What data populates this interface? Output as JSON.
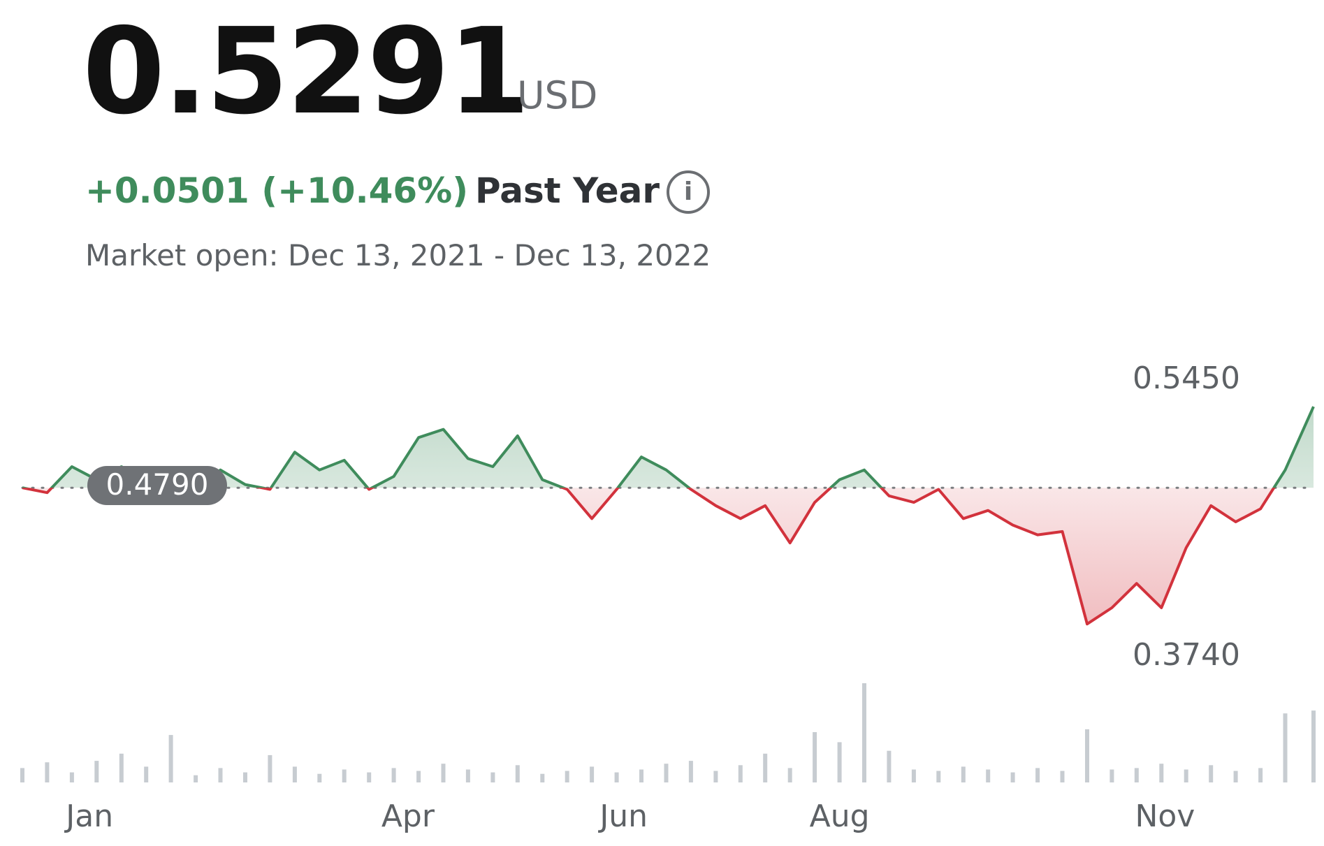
{
  "quote": {
    "price": "0.5291",
    "currency": "USD",
    "change": "+0.0501 (+10.46%)",
    "period": "Past Year",
    "session": "Market open: Dec 13, 2021 - Dec 13, 2022"
  },
  "colors": {
    "up": "#3f8c5c",
    "down": "#d2323c",
    "volume": "#c7ccd1",
    "baseline": "#7a7d80",
    "text_muted": "#5d6165"
  },
  "icons": {
    "info": "info-circle-icon"
  },
  "chart_data": {
    "type": "line",
    "x_range": [
      "2021-12-13",
      "2022-12-13"
    ],
    "ylim": [
      0.374,
      0.545
    ],
    "baseline": 0.479,
    "baseline_label": "0.4790",
    "high_label": "0.5450",
    "low_label": "0.3740",
    "xticks": [
      {
        "date": "2022-01-01",
        "label": "Jan"
      },
      {
        "date": "2022-04-01",
        "label": "Apr"
      },
      {
        "date": "2022-06-01",
        "label": "Jun"
      },
      {
        "date": "2022-08-01",
        "label": "Aug"
      },
      {
        "date": "2022-11-01",
        "label": "Nov"
      }
    ],
    "price_series": [
      {
        "date": "2021-12-13",
        "value": 0.479
      },
      {
        "date": "2021-12-20",
        "value": 0.476
      },
      {
        "date": "2021-12-27",
        "value": 0.492
      },
      {
        "date": "2022-01-03",
        "value": 0.484
      },
      {
        "date": "2022-01-10",
        "value": 0.492
      },
      {
        "date": "2022-01-17",
        "value": 0.483
      },
      {
        "date": "2022-01-24",
        "value": 0.49
      },
      {
        "date": "2022-01-31",
        "value": 0.478
      },
      {
        "date": "2022-02-07",
        "value": 0.49
      },
      {
        "date": "2022-02-14",
        "value": 0.481
      },
      {
        "date": "2022-02-21",
        "value": 0.478
      },
      {
        "date": "2022-02-28",
        "value": 0.501
      },
      {
        "date": "2022-03-07",
        "value": 0.49
      },
      {
        "date": "2022-03-14",
        "value": 0.496
      },
      {
        "date": "2022-03-21",
        "value": 0.478
      },
      {
        "date": "2022-03-28",
        "value": 0.486
      },
      {
        "date": "2022-04-04",
        "value": 0.51
      },
      {
        "date": "2022-04-11",
        "value": 0.515
      },
      {
        "date": "2022-04-18",
        "value": 0.497
      },
      {
        "date": "2022-04-25",
        "value": 0.492
      },
      {
        "date": "2022-05-02",
        "value": 0.511
      },
      {
        "date": "2022-05-09",
        "value": 0.484
      },
      {
        "date": "2022-05-16",
        "value": 0.478
      },
      {
        "date": "2022-05-23",
        "value": 0.46
      },
      {
        "date": "2022-05-30",
        "value": 0.478
      },
      {
        "date": "2022-06-06",
        "value": 0.498
      },
      {
        "date": "2022-06-13",
        "value": 0.49
      },
      {
        "date": "2022-06-20",
        "value": 0.478
      },
      {
        "date": "2022-06-27",
        "value": 0.468
      },
      {
        "date": "2022-07-04",
        "value": 0.46
      },
      {
        "date": "2022-07-11",
        "value": 0.468
      },
      {
        "date": "2022-07-18",
        "value": 0.445
      },
      {
        "date": "2022-07-25",
        "value": 0.47
      },
      {
        "date": "2022-08-01",
        "value": 0.484
      },
      {
        "date": "2022-08-08",
        "value": 0.49
      },
      {
        "date": "2022-08-15",
        "value": 0.474
      },
      {
        "date": "2022-08-22",
        "value": 0.47
      },
      {
        "date": "2022-08-29",
        "value": 0.478
      },
      {
        "date": "2022-09-05",
        "value": 0.46
      },
      {
        "date": "2022-09-12",
        "value": 0.465
      },
      {
        "date": "2022-09-19",
        "value": 0.456
      },
      {
        "date": "2022-09-26",
        "value": 0.45
      },
      {
        "date": "2022-10-03",
        "value": 0.452
      },
      {
        "date": "2022-10-10",
        "value": 0.395
      },
      {
        "date": "2022-10-17",
        "value": 0.405
      },
      {
        "date": "2022-10-24",
        "value": 0.42
      },
      {
        "date": "2022-10-31",
        "value": 0.405
      },
      {
        "date": "2022-11-07",
        "value": 0.442
      },
      {
        "date": "2022-11-14",
        "value": 0.468
      },
      {
        "date": "2022-11-21",
        "value": 0.458
      },
      {
        "date": "2022-11-28",
        "value": 0.466
      },
      {
        "date": "2022-12-05",
        "value": 0.49
      },
      {
        "date": "2022-12-13",
        "value": 0.529
      }
    ],
    "volume_series": [
      {
        "date": "2021-12-13",
        "value": 20
      },
      {
        "date": "2021-12-20",
        "value": 28
      },
      {
        "date": "2021-12-27",
        "value": 14
      },
      {
        "date": "2022-01-03",
        "value": 30
      },
      {
        "date": "2022-01-10",
        "value": 40
      },
      {
        "date": "2022-01-17",
        "value": 22
      },
      {
        "date": "2022-01-24",
        "value": 66
      },
      {
        "date": "2022-01-31",
        "value": 10
      },
      {
        "date": "2022-02-07",
        "value": 20
      },
      {
        "date": "2022-02-14",
        "value": 14
      },
      {
        "date": "2022-02-21",
        "value": 38
      },
      {
        "date": "2022-02-28",
        "value": 22
      },
      {
        "date": "2022-03-07",
        "value": 12
      },
      {
        "date": "2022-03-14",
        "value": 18
      },
      {
        "date": "2022-03-21",
        "value": 14
      },
      {
        "date": "2022-03-28",
        "value": 20
      },
      {
        "date": "2022-04-04",
        "value": 16
      },
      {
        "date": "2022-04-11",
        "value": 26
      },
      {
        "date": "2022-04-18",
        "value": 18
      },
      {
        "date": "2022-04-25",
        "value": 14
      },
      {
        "date": "2022-05-02",
        "value": 24
      },
      {
        "date": "2022-05-09",
        "value": 12
      },
      {
        "date": "2022-05-16",
        "value": 16
      },
      {
        "date": "2022-05-23",
        "value": 22
      },
      {
        "date": "2022-05-30",
        "value": 14
      },
      {
        "date": "2022-06-06",
        "value": 18
      },
      {
        "date": "2022-06-13",
        "value": 26
      },
      {
        "date": "2022-06-20",
        "value": 30
      },
      {
        "date": "2022-06-27",
        "value": 16
      },
      {
        "date": "2022-07-04",
        "value": 24
      },
      {
        "date": "2022-07-11",
        "value": 40
      },
      {
        "date": "2022-07-18",
        "value": 20
      },
      {
        "date": "2022-07-25",
        "value": 70
      },
      {
        "date": "2022-08-01",
        "value": 56
      },
      {
        "date": "2022-08-08",
        "value": 138
      },
      {
        "date": "2022-08-15",
        "value": 44
      },
      {
        "date": "2022-08-22",
        "value": 18
      },
      {
        "date": "2022-08-29",
        "value": 16
      },
      {
        "date": "2022-09-05",
        "value": 22
      },
      {
        "date": "2022-09-12",
        "value": 18
      },
      {
        "date": "2022-09-19",
        "value": 14
      },
      {
        "date": "2022-09-26",
        "value": 20
      },
      {
        "date": "2022-10-03",
        "value": 16
      },
      {
        "date": "2022-10-10",
        "value": 74
      },
      {
        "date": "2022-10-17",
        "value": 18
      },
      {
        "date": "2022-10-24",
        "value": 20
      },
      {
        "date": "2022-10-31",
        "value": 26
      },
      {
        "date": "2022-11-07",
        "value": 18
      },
      {
        "date": "2022-11-14",
        "value": 24
      },
      {
        "date": "2022-11-21",
        "value": 16
      },
      {
        "date": "2022-11-28",
        "value": 20
      },
      {
        "date": "2022-12-05",
        "value": 96
      },
      {
        "date": "2022-12-13",
        "value": 100
      }
    ]
  }
}
